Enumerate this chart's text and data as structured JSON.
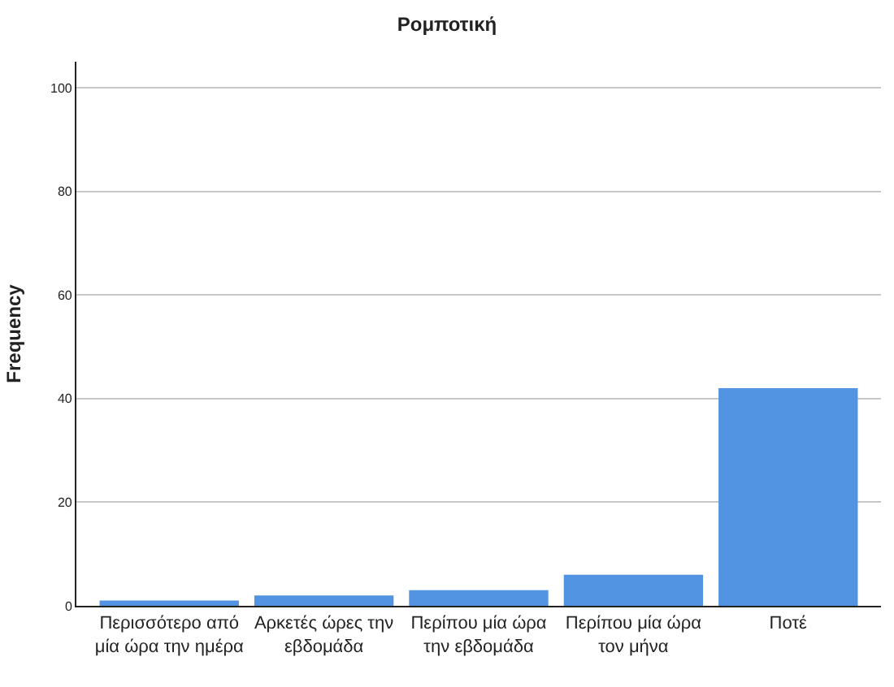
{
  "chart_data": {
    "type": "bar",
    "title": "Ρομποτική",
    "ylabel": "Frequency",
    "categories": [
      "Περισσότερο από μία ώρα την ημέρα",
      "Αρκετές ώρες την εβδομάδα",
      "Περίπου μία ώρα την εβδομάδα",
      "Περίπου μία ώρα τον μήνα",
      "Ποτέ"
    ],
    "values": [
      1,
      2,
      3,
      6,
      42
    ],
    "color": "#5294e2",
    "ylim": [
      0,
      105
    ],
    "yticks": [
      0,
      20,
      40,
      60,
      80,
      100
    ],
    "grid": "y",
    "legend": false
  }
}
